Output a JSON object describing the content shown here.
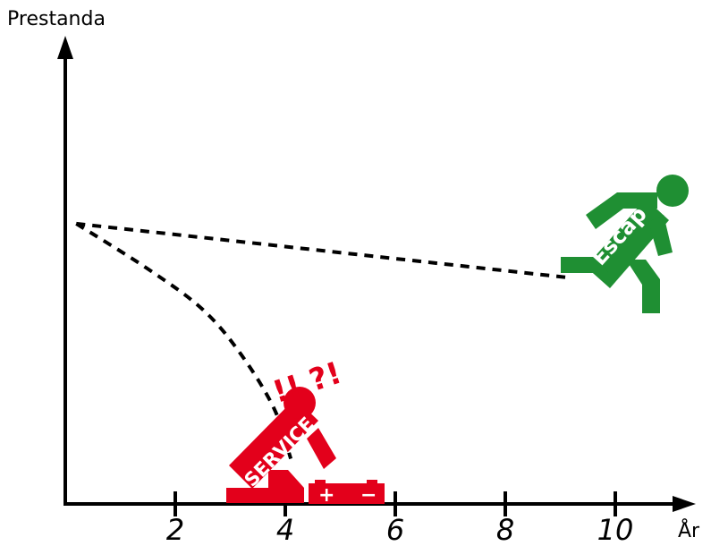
{
  "chart_data": {
    "type": "line",
    "ylabel": "Prestanda",
    "xlabel": "År",
    "xlim": [
      0,
      11
    ],
    "x_ticks": [
      2,
      4,
      6,
      8,
      10
    ],
    "grid": false,
    "series": [
      {
        "style": "dashed",
        "x": [
          0.2,
          1.5,
          2.5,
          3.2,
          3.8,
          4.1
        ],
        "y": [
          6.2,
          5.2,
          4.3,
          3.3,
          2.1,
          1.0
        ]
      },
      {
        "style": "dashed",
        "x": [
          0.2,
          9.2
        ],
        "y": [
          6.2,
          5.0
        ]
      }
    ],
    "annotations": {
      "service_figure": {
        "label": "SERVICE",
        "marks": "!! ?!",
        "color": "#e3001b",
        "at_x": 4
      },
      "escape_figure": {
        "label": "Escap",
        "color": "#1f8f33",
        "at_x": 10
      },
      "battery_icon": {
        "plus": "+",
        "minus": "−",
        "color": "#e3001b"
      }
    },
    "colors": {
      "axis": "#000000",
      "line": "#000000",
      "service": "#e3001b",
      "escape": "#1f8f33"
    }
  }
}
